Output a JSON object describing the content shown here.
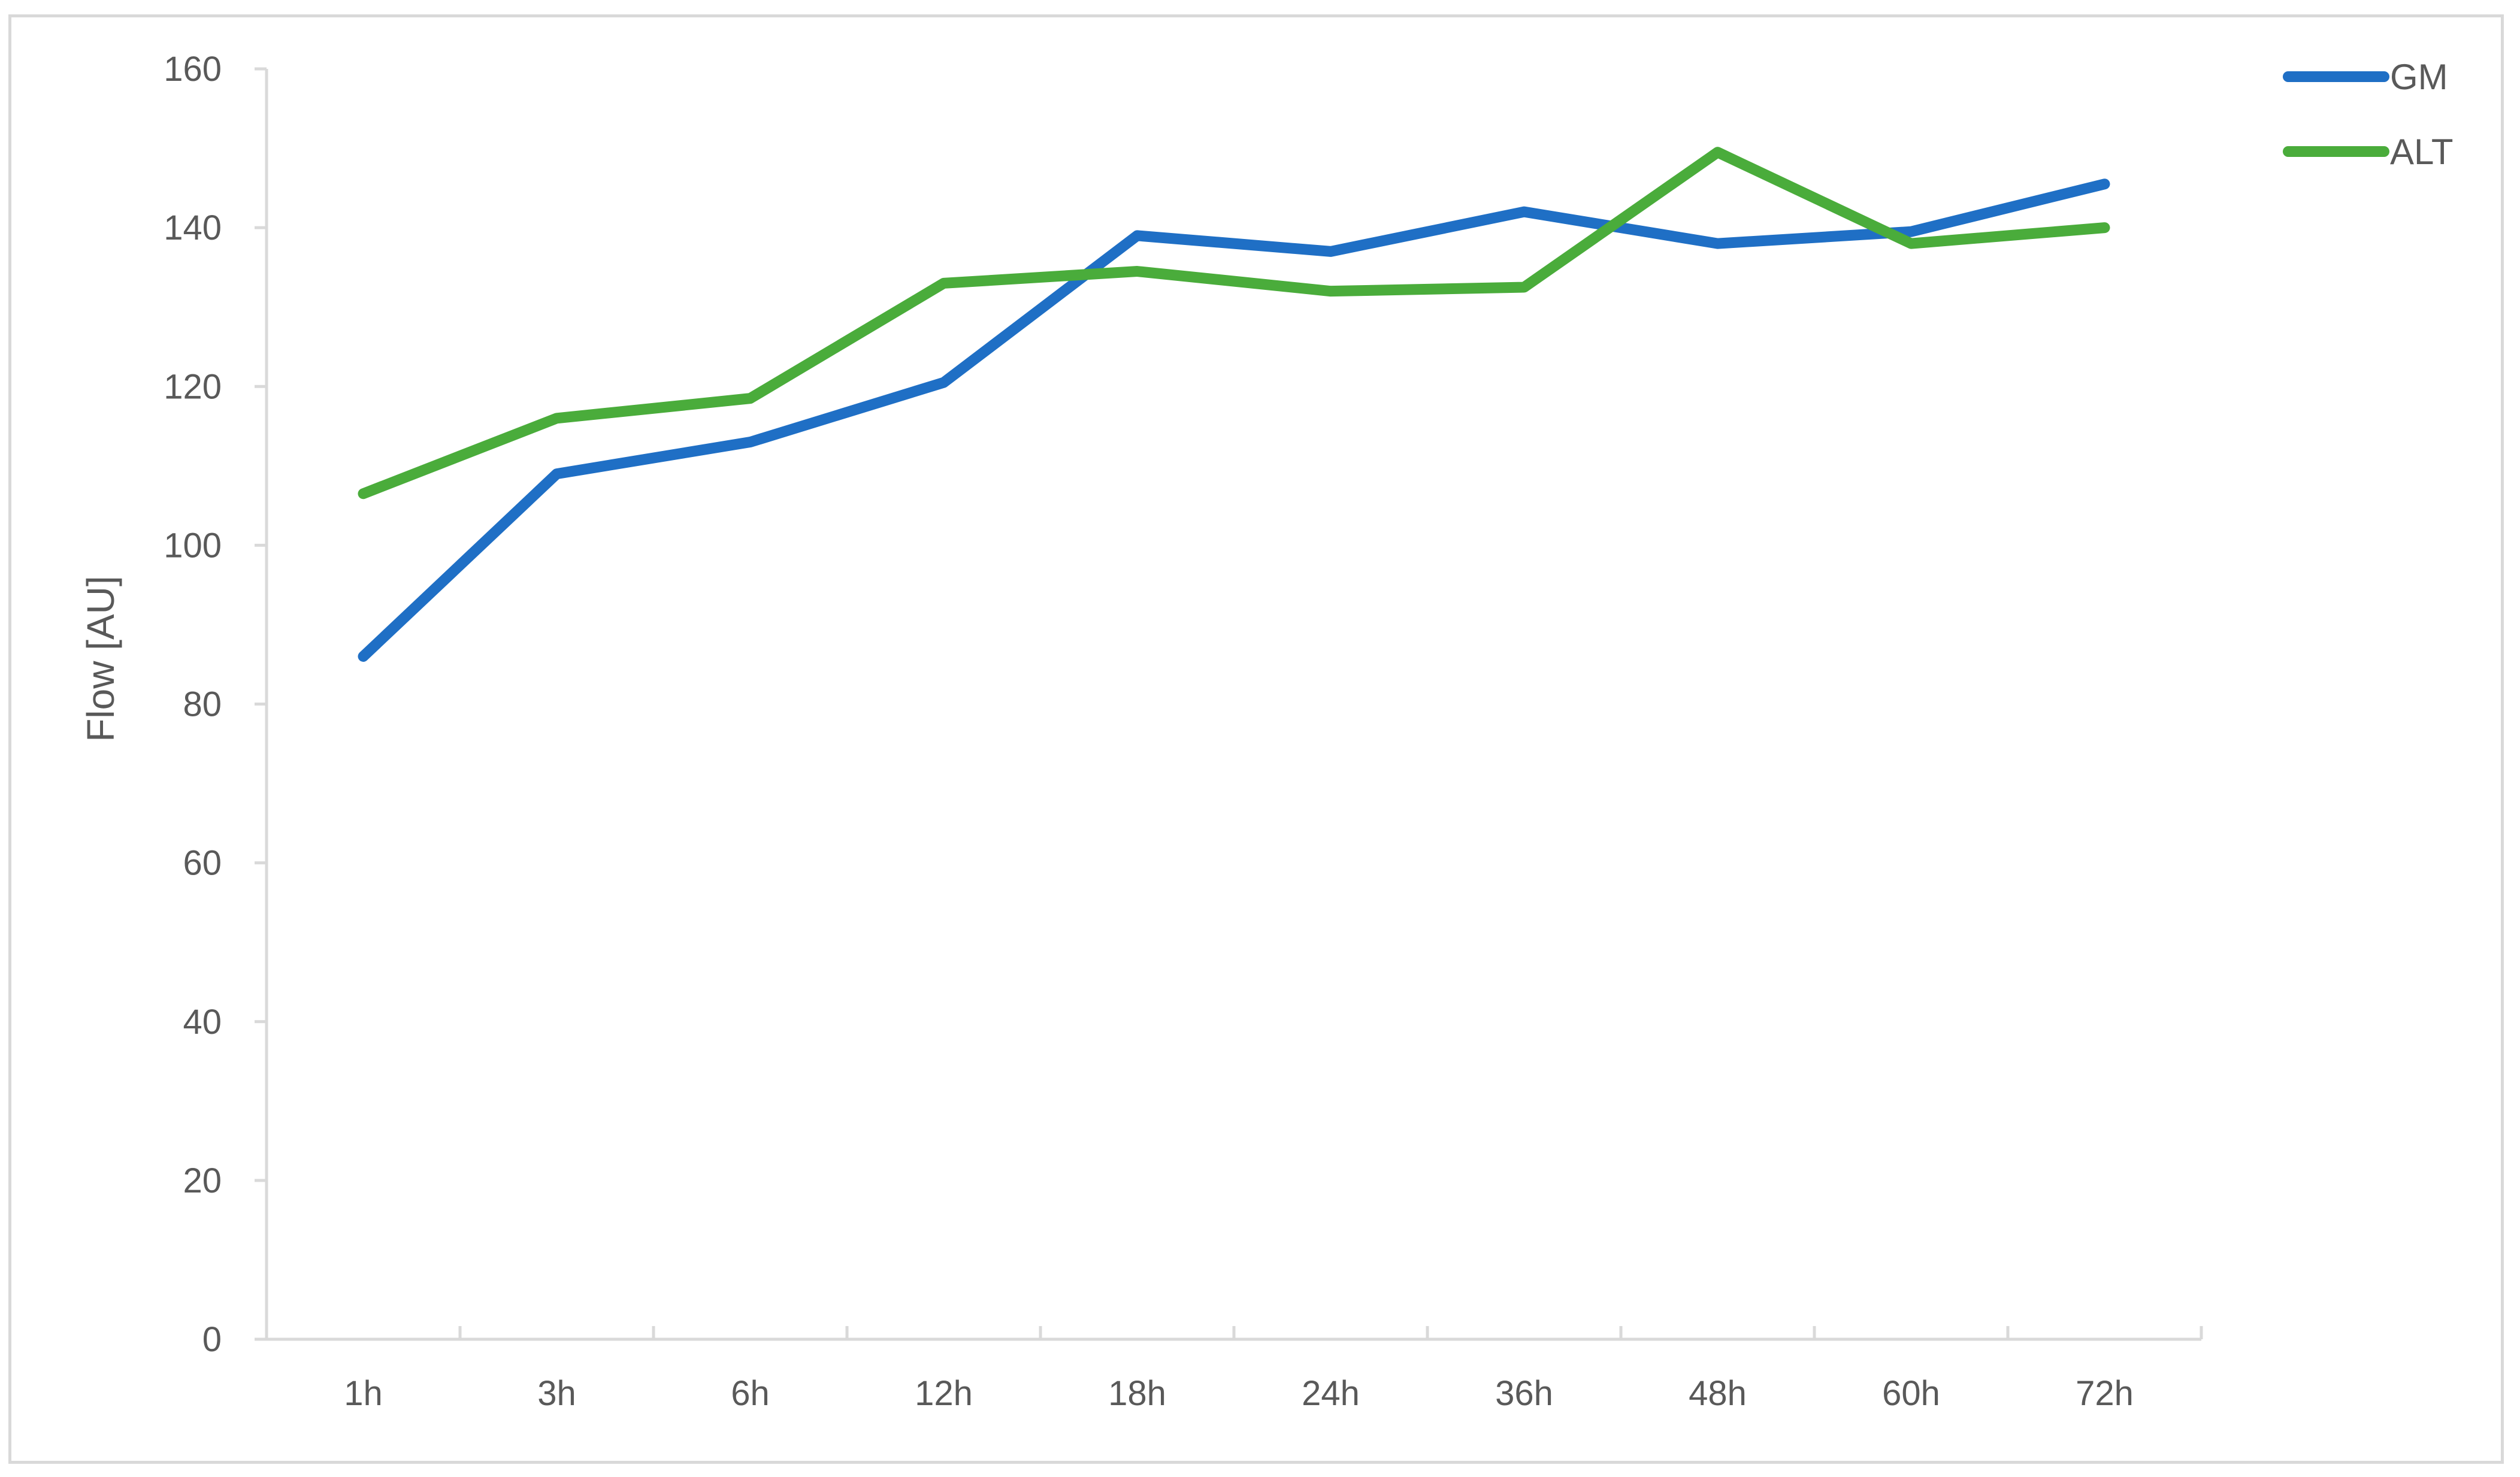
{
  "chart_data": {
    "type": "line",
    "title": "",
    "xlabel": "",
    "ylabel": "Flow [AU]",
    "categories": [
      "1h",
      "3h",
      "6h",
      "12h",
      "18h",
      "24h",
      "36h",
      "48h",
      "60h",
      "72h"
    ],
    "ylim": [
      0,
      160
    ],
    "yticks": [
      0,
      20,
      40,
      60,
      80,
      100,
      120,
      140,
      160
    ],
    "grid": false,
    "legend_position": "top-right",
    "series": [
      {
        "name": "GM",
        "color": "#1f6fc5",
        "values": [
          86,
          109,
          113,
          120.5,
          139,
          137,
          142,
          138,
          139.5,
          145.5
        ]
      },
      {
        "name": "ALT",
        "color": "#4aac3b",
        "values": [
          106.5,
          116,
          118.5,
          133,
          134.5,
          132,
          132.5,
          149.5,
          138,
          140
        ]
      }
    ]
  }
}
